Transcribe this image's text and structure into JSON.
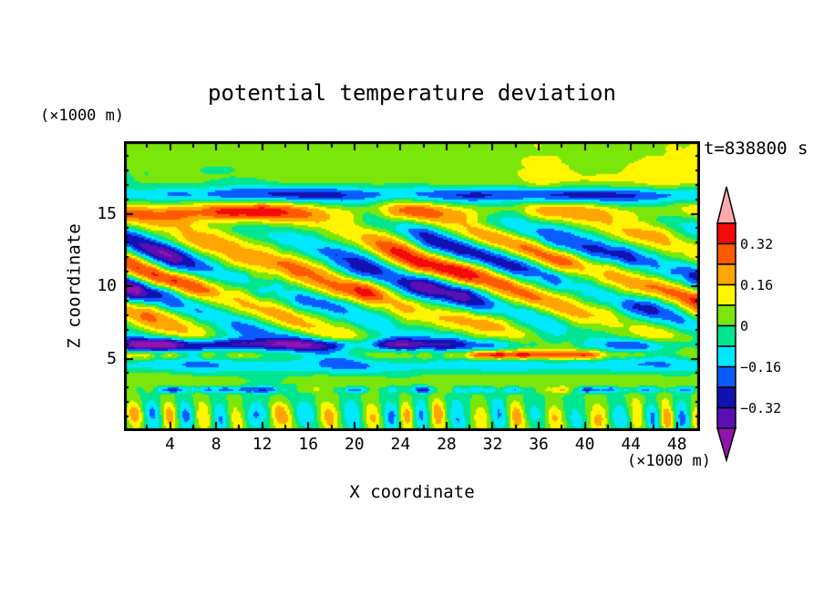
{
  "chart_data": {
    "type": "filled_contour",
    "title": "potential temperature deviation",
    "time_annotation": "t=838800 s",
    "xlabel": "X coordinate",
    "ylabel": "Z coordinate",
    "x_units": "(×1000 m)",
    "z_units": "(×1000 m)",
    "xlim": [
      0,
      50
    ],
    "zlim": [
      0,
      20
    ],
    "x_major_ticks": [
      4,
      8,
      12,
      16,
      20,
      24,
      28,
      32,
      36,
      40,
      44,
      48
    ],
    "x_minor_tick_step": 2,
    "z_major_ticks": [
      5,
      10,
      15
    ],
    "z_minor_tick_step": 1,
    "contour_interval": 0.08,
    "levels": [
      -0.4,
      -0.32,
      -0.24,
      -0.16,
      -0.08,
      0,
      0.08,
      0.16,
      0.24,
      0.32,
      0.4
    ],
    "palette": [
      "#9413AE",
      "#5A0EB4",
      "#1212B4",
      "#0A5CFF",
      "#00E8FF",
      "#00E690",
      "#7BE60A",
      "#FFF500",
      "#FFA500",
      "#FF5A00",
      "#F50A0A",
      "#FFAAAA"
    ],
    "colorbar_labels": [
      "0.32",
      "0.16",
      "0",
      "−0.16",
      "−0.32"
    ],
    "colorbar_label_levels": [
      0.32,
      0.16,
      0,
      -0.16,
      -0.32
    ],
    "frame_color": "#000000",
    "background_color": "#ffffff"
  }
}
